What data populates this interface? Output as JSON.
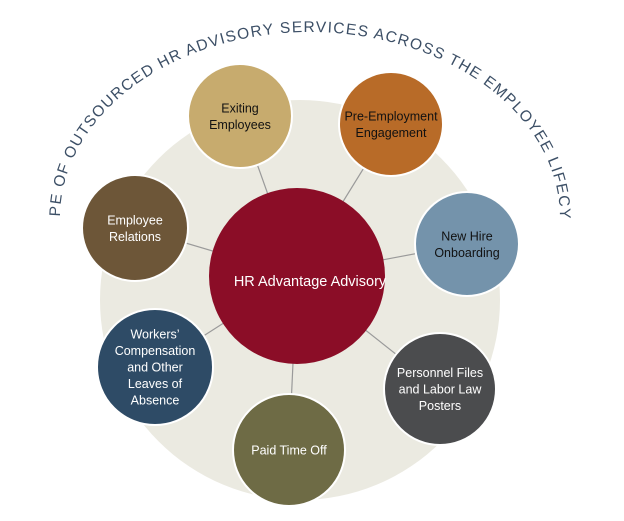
{
  "title": "SCOPE OF OUTSOURCED HR ADVISORY SERVICES ACROSS THE EMPLOYEE LIFECYCLE",
  "center": {
    "label": "HR Advantage Advisory",
    "color": "#8b0d27"
  },
  "background_color": "#ebeae1",
  "connector_color": "#9a9a9a",
  "nodes": [
    {
      "id": "exiting-employees",
      "lines": [
        "Exiting",
        "Employees"
      ],
      "color": "#c7ab6e",
      "text_color": "#111111"
    },
    {
      "id": "pre-employment-engagement",
      "lines": [
        "Pre-Employment",
        "Engagement"
      ],
      "color": "#b86b28",
      "text_color": "#111111"
    },
    {
      "id": "new-hire-onboarding",
      "lines": [
        "New Hire",
        "Onboarding"
      ],
      "color": "#7493ab",
      "text_color": "#111111"
    },
    {
      "id": "personnel-files",
      "lines": [
        "Personnel Files",
        "and Labor Law",
        "Posters"
      ],
      "color": "#4b4c4e",
      "text_color": "#ffffff"
    },
    {
      "id": "paid-time-off",
      "lines": [
        "Paid Time Off"
      ],
      "color": "#6e6b45",
      "text_color": "#ffffff"
    },
    {
      "id": "workers-compensation",
      "lines": [
        "Workers’",
        "Compensation",
        "and Other",
        "Leaves of",
        "Absence"
      ],
      "color": "#2e4b66",
      "text_color": "#ffffff"
    },
    {
      "id": "employee-relations",
      "lines": [
        "Employee",
        "Relations"
      ],
      "color": "#6d5638",
      "text_color": "#ffffff"
    }
  ]
}
